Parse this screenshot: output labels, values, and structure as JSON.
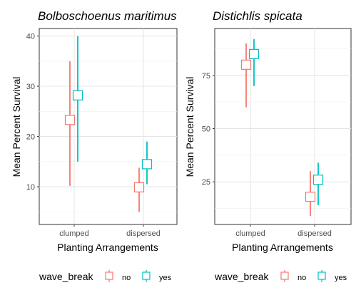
{
  "chart_data": [
    {
      "type": "scatter",
      "title": "Bolboschoenus maritimus",
      "xlabel": "Planting Arrangements",
      "ylabel": "Mean Percent Survival",
      "categories": [
        "clumped",
        "dispersed"
      ],
      "ylim": [
        2.5,
        41.5
      ],
      "yticks": [
        10,
        20,
        30,
        40
      ],
      "ytick_labels": [
        "10",
        "20",
        "30",
        "40"
      ],
      "grid": true,
      "series": [
        {
          "name": "no",
          "color": "#F8766D",
          "values": [
            23.3,
            9.9
          ],
          "lower": [
            10.2,
            5.0
          ],
          "upper": [
            35.0,
            13.8
          ]
        },
        {
          "name": "yes",
          "color": "#00BFC4",
          "values": [
            28.2,
            14.5
          ],
          "lower": [
            15.0,
            10.5
          ],
          "upper": [
            40.0,
            19.0
          ]
        }
      ]
    },
    {
      "type": "scatter",
      "title": "Distichlis spicata",
      "xlabel": "Planting Arrangements",
      "ylabel": "Mean Percent Survival",
      "categories": [
        "clumped",
        "dispersed"
      ],
      "ylim": [
        5,
        97
      ],
      "yticks": [
        25,
        50,
        75
      ],
      "ytick_labels": [
        "25",
        "50",
        "75"
      ],
      "grid": true,
      "series": [
        {
          "name": "no",
          "color": "#F8766D",
          "values": [
            80,
            18
          ],
          "lower": [
            60,
            9
          ],
          "upper": [
            90,
            30
          ]
        },
        {
          "name": "yes",
          "color": "#00BFC4",
          "values": [
            85,
            26
          ],
          "lower": [
            70,
            14
          ],
          "upper": [
            92,
            34
          ]
        }
      ]
    }
  ],
  "legend": {
    "title": "wave_break",
    "placement": "bottom",
    "items": [
      {
        "label": "no",
        "color": "#F8766D"
      },
      {
        "label": "yes",
        "color": "#00BFC4"
      }
    ]
  }
}
